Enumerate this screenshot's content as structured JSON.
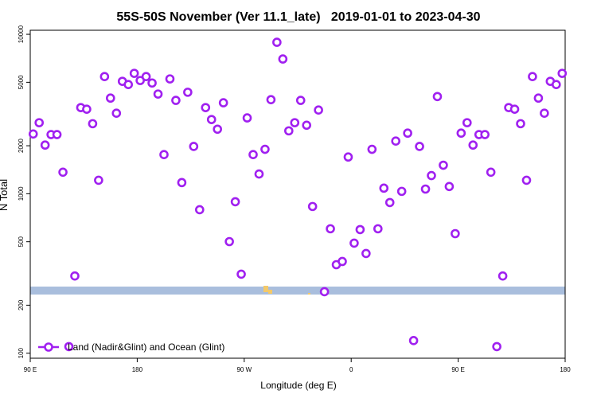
{
  "chart_data": {
    "type": "scatter",
    "title": "55S-50S November (Ver 11.1_late)   2019-01-01 to 2023-04-30",
    "xlabel": "Longitude (deg E)",
    "ylabel": "N Total",
    "x": [
      92.5,
      97.5,
      102.5,
      107.5,
      112.5,
      117.5,
      122.5,
      127.5,
      132.5,
      137.5,
      142.5,
      147.5,
      152.5,
      157.5,
      162.5,
      167.5,
      172.5,
      177.5,
      182.5,
      187.5,
      192.5,
      197.5,
      202.5,
      207.5,
      212.5,
      217.5,
      222.5,
      227.5,
      232.5,
      237.5,
      242.5,
      247.5,
      252.5,
      257.5,
      262.5,
      267.5,
      272.5,
      277.5,
      282.5,
      287.5,
      292.5,
      297.5,
      302.5,
      307.5,
      312.5,
      317.5,
      322.5,
      327.5,
      332.5,
      337.5,
      342.5,
      347.5,
      352.5,
      357.5,
      362.5,
      367.5,
      372.5,
      377.5,
      382.5,
      387.5,
      392.5,
      397.5,
      402.5,
      407.5,
      412.5,
      417.5,
      422.5,
      427.5,
      432.5,
      437.5,
      442.5,
      447.5,
      452.5,
      457.5,
      462.5,
      467.5,
      472.5,
      477.5,
      482.5,
      487.5,
      492.5,
      497.5,
      502.5,
      507.5,
      512.5,
      517.5,
      522.5,
      527.5,
      532.5,
      537.5
    ],
    "series": [
      {
        "name": "Land (Nadir&Glint) and Ocean (Glint)",
        "color": "#a020f0",
        "values": [
          2370,
          2790,
          2020,
          2350,
          2350,
          1365,
          110,
          305,
          3470,
          3390,
          2750,
          1215,
          5430,
          3980,
          3200,
          5070,
          4840,
          5690,
          5130,
          5430,
          4950,
          4220,
          1760,
          5250,
          3850,
          1175,
          4330,
          1980,
          794,
          3470,
          2920,
          2540,
          3720,
          501,
          891,
          313,
          2990,
          1760,
          1330,
          1900,
          3890,
          8910,
          7000,
          2480,
          2790,
          3850,
          2690,
          832,
          3350,
          243,
          603,
          359,
          376,
          1700,
          490,
          596,
          422,
          1900,
          603,
          1084,
          881,
          2140,
          1035,
          2400,
          120,
          1980,
          1070,
          1300,
          4070,
          1510,
          1110,
          562,
          2400,
          2790,
          2020,
          2350,
          2350,
          1365,
          110,
          305,
          3470,
          3390,
          2750,
          1215,
          5430,
          3980,
          3200,
          5070,
          4840,
          5690
        ]
      }
    ],
    "xlim": [
      90,
      540
    ],
    "xticks": [
      {
        "value": 90,
        "label": "90 E"
      },
      180,
      {
        "value": 270,
        "label": "90 W"
      },
      {
        "value": 360,
        "label": "0"
      },
      {
        "value": 450,
        "label": "90 E"
      },
      180
    ],
    "ylim": [
      93,
      10600
    ],
    "ylog": true,
    "yticks": [
      100,
      200,
      500,
      1000,
      2000,
      5000,
      10000
    ],
    "legend": "lower left"
  }
}
